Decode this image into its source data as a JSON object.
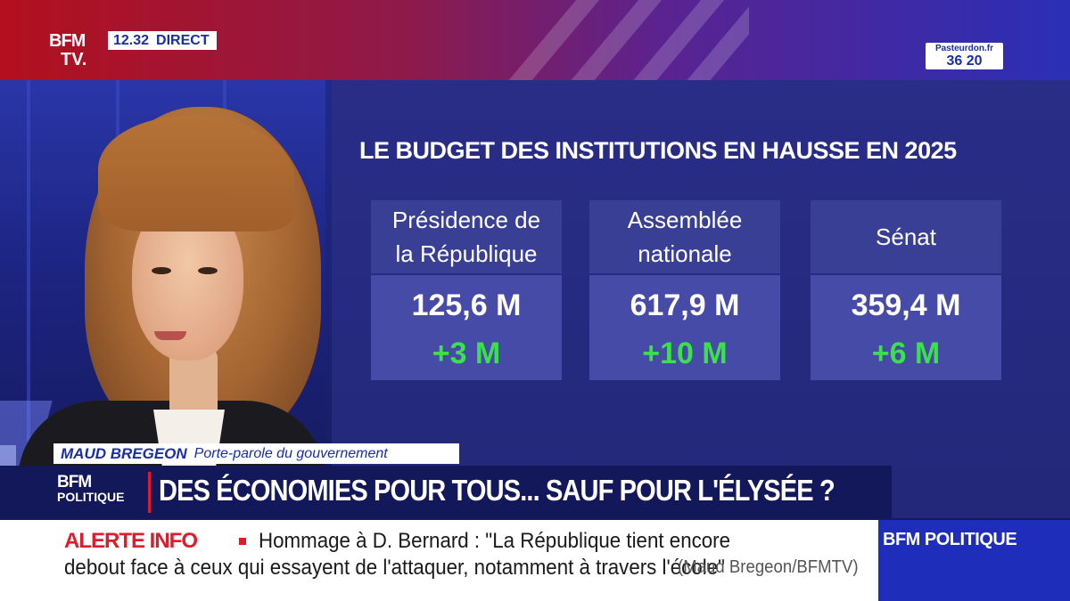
{
  "topbar": {
    "logo_line1": "BFM",
    "logo_line2": "TV.",
    "time": "12.32",
    "live": "DIRECT",
    "donate_url": "Pasteurdon.fr",
    "donate_number": "36 20"
  },
  "infographic": {
    "title": "LE BUDGET DES INSTITUTIONS EN HAUSSE EN 2025",
    "cards": [
      {
        "head_line1": "Présidence de",
        "head_line2": "la République",
        "amount": "125,6 M",
        "delta": "+3 M"
      },
      {
        "head_line1": "Assemblée",
        "head_line2": "nationale",
        "amount": "617,9 M",
        "delta": "+10 M"
      },
      {
        "head_line1": "Sénat",
        "head_line2": "",
        "amount": "359,4 M",
        "delta": "+6 M"
      }
    ],
    "colors": {
      "delta": "#3ce04a",
      "card_head": "#3a3f96",
      "card_body": "#454ba6"
    }
  },
  "lower_third": {
    "speaker_name": "MAUD BREGEON",
    "speaker_role": "Porte-parole du gouvernement",
    "show_logo_line1": "BFM",
    "show_logo_line2": "POLITIQUE",
    "headline": "DES ÉCONOMIES POUR TOUS... SAUF POUR L'ÉLYSÉE ?"
  },
  "ticker": {
    "label": "ALERTE INFO",
    "line1": "Hommage à D. Bernard : \"La République tient encore",
    "line2": "debout face à ceux qui essayent de l'attaquer, notamment à travers l'école\"",
    "source": "(Maud Bregeon/BFMTV)",
    "channel": "BFM POLITIQUE",
    "colors": {
      "alert": "#e01c2c",
      "brand_blue": "#1f2dbb"
    }
  }
}
